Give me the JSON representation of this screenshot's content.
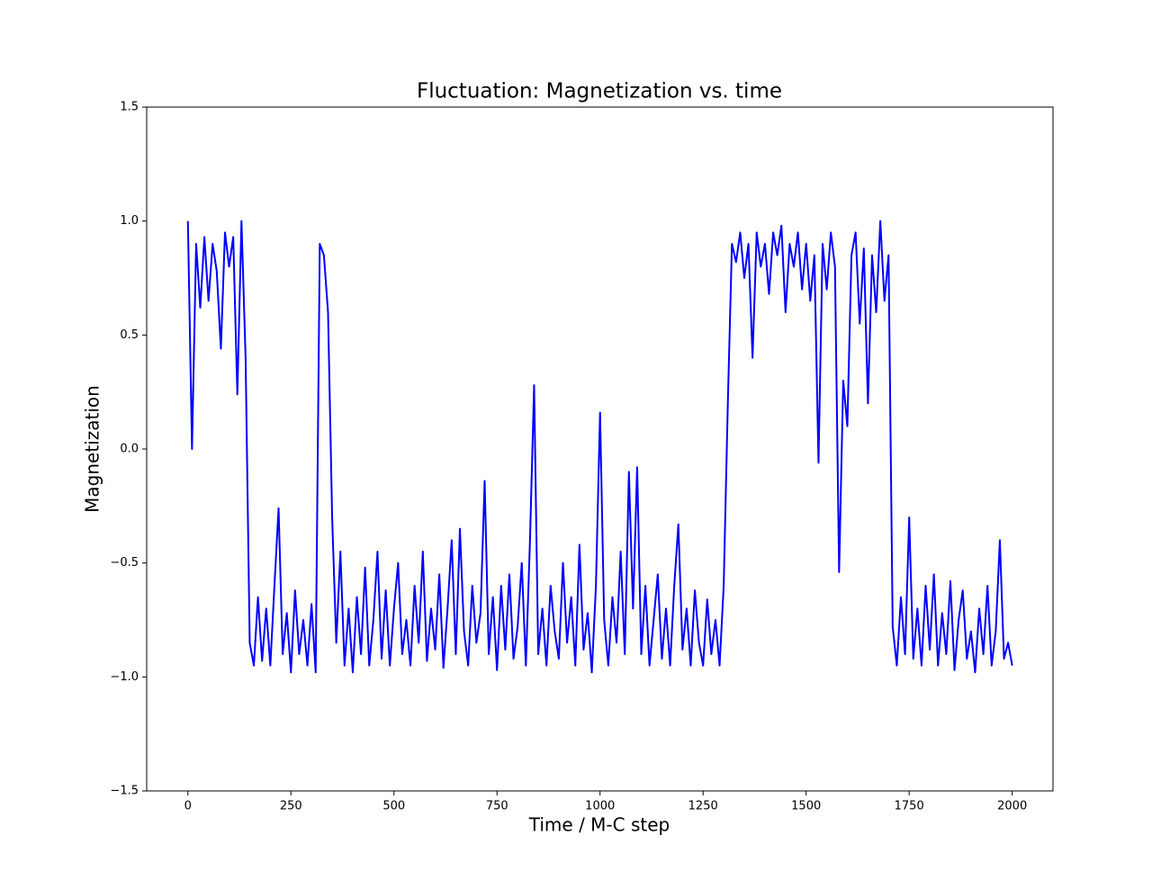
{
  "chart_data": {
    "type": "line",
    "title": "Fluctuation: Magnetization vs. time",
    "x_label": "Time / M-C step",
    "y_label": "Magnetization",
    "xlim": [
      -99.95,
      2098.95
    ],
    "ylim": [
      -1.5,
      1.5
    ],
    "xticks": [
      0,
      250,
      500,
      750,
      1000,
      1250,
      1500,
      1750,
      2000
    ],
    "yticks": [
      {
        "value": -1.5,
        "label": "−1.5"
      },
      {
        "value": -1.0,
        "label": "−1.0"
      },
      {
        "value": -0.5,
        "label": "−0.5"
      },
      {
        "value": 0,
        "label": "0.0"
      },
      0.5,
      {
        "value": 1.0,
        "label": "1.0"
      },
      1.5
    ],
    "grid": false,
    "series": [
      {
        "color": "#0000ff",
        "x": [
          0,
          10,
          20,
          30,
          40,
          50,
          60,
          70,
          80,
          90,
          100,
          110,
          120,
          130,
          140,
          150,
          160,
          170,
          180,
          190,
          200,
          210,
          220,
          230,
          240,
          250,
          260,
          270,
          280,
          290,
          300,
          310,
          320,
          330,
          340,
          350,
          360,
          370,
          380,
          390,
          400,
          410,
          420,
          430,
          440,
          450,
          460,
          470,
          480,
          490,
          500,
          510,
          520,
          530,
          540,
          550,
          560,
          570,
          580,
          590,
          600,
          610,
          620,
          630,
          640,
          650,
          660,
          670,
          680,
          690,
          700,
          710,
          720,
          730,
          740,
          750,
          760,
          770,
          780,
          790,
          800,
          810,
          820,
          830,
          840,
          850,
          860,
          870,
          880,
          890,
          900,
          910,
          920,
          930,
          940,
          950,
          960,
          970,
          980,
          990,
          1000,
          1010,
          1020,
          1030,
          1040,
          1050,
          1060,
          1070,
          1080,
          1090,
          1100,
          1110,
          1120,
          1130,
          1140,
          1150,
          1160,
          1170,
          1180,
          1190,
          1200,
          1210,
          1220,
          1230,
          1240,
          1250,
          1260,
          1270,
          1280,
          1290,
          1300,
          1310,
          1320,
          1330,
          1340,
          1350,
          1360,
          1370,
          1380,
          1390,
          1400,
          1410,
          1420,
          1430,
          1440,
          1450,
          1460,
          1470,
          1480,
          1490,
          1500,
          1510,
          1520,
          1530,
          1540,
          1550,
          1560,
          1570,
          1580,
          1590,
          1600,
          1610,
          1620,
          1630,
          1640,
          1650,
          1660,
          1670,
          1680,
          1690,
          1700,
          1710,
          1720,
          1730,
          1740,
          1750,
          1760,
          1770,
          1780,
          1790,
          1800,
          1810,
          1820,
          1830,
          1840,
          1850,
          1860,
          1870,
          1880,
          1890,
          1900,
          1910,
          1920,
          1930,
          1940,
          1950,
          1960,
          1970,
          1980,
          1990,
          2000
        ],
        "values": [
          1.0,
          0.0,
          0.9,
          0.62,
          0.93,
          0.65,
          0.9,
          0.78,
          0.44,
          0.95,
          0.8,
          0.93,
          0.24,
          1.0,
          0.4,
          -0.85,
          -0.95,
          -0.65,
          -0.93,
          -0.7,
          -0.95,
          -0.6,
          -0.26,
          -0.9,
          -0.72,
          -0.98,
          -0.62,
          -0.9,
          -0.75,
          -0.95,
          -0.68,
          -0.98,
          0.9,
          0.85,
          0.6,
          -0.3,
          -0.85,
          -0.45,
          -0.95,
          -0.7,
          -0.98,
          -0.65,
          -0.9,
          -0.52,
          -0.95,
          -0.75,
          -0.45,
          -0.92,
          -0.62,
          -0.95,
          -0.7,
          -0.5,
          -0.9,
          -0.75,
          -0.95,
          -0.6,
          -0.85,
          -0.45,
          -0.93,
          -0.7,
          -0.88,
          -0.55,
          -0.96,
          -0.7,
          -0.4,
          -0.9,
          -0.35,
          -0.8,
          -0.95,
          -0.6,
          -0.85,
          -0.72,
          -0.14,
          -0.9,
          -0.65,
          -0.97,
          -0.6,
          -0.88,
          -0.55,
          -0.92,
          -0.78,
          -0.5,
          -0.95,
          -0.4,
          0.28,
          -0.9,
          -0.7,
          -0.95,
          -0.6,
          -0.8,
          -0.92,
          -0.5,
          -0.85,
          -0.65,
          -0.95,
          -0.42,
          -0.88,
          -0.72,
          -0.98,
          -0.6,
          0.16,
          -0.75,
          -0.95,
          -0.65,
          -0.85,
          -0.45,
          -0.9,
          -0.1,
          -0.7,
          -0.08,
          -0.9,
          -0.6,
          -0.95,
          -0.75,
          -0.55,
          -0.92,
          -0.7,
          -0.95,
          -0.6,
          -0.33,
          -0.88,
          -0.7,
          -0.95,
          -0.62,
          -0.85,
          -0.95,
          -0.66,
          -0.9,
          -0.75,
          -0.95,
          -0.6,
          0.2,
          0.9,
          0.82,
          0.95,
          0.75,
          0.9,
          0.4,
          0.95,
          0.8,
          0.9,
          0.68,
          0.95,
          0.85,
          0.98,
          0.6,
          0.9,
          0.8,
          0.95,
          0.7,
          0.9,
          0.65,
          0.85,
          -0.06,
          0.9,
          0.7,
          0.95,
          0.8,
          -0.54,
          0.3,
          0.1,
          0.85,
          0.95,
          0.55,
          0.88,
          0.2,
          0.85,
          0.6,
          1.0,
          0.65,
          0.85,
          -0.78,
          -0.95,
          -0.65,
          -0.9,
          -0.3,
          -0.92,
          -0.7,
          -0.95,
          -0.6,
          -0.88,
          -0.55,
          -0.95,
          -0.72,
          -0.9,
          -0.58,
          -0.97,
          -0.75,
          -0.62,
          -0.92,
          -0.8,
          -0.98,
          -0.7,
          -0.9,
          -0.6,
          -0.95,
          -0.8,
          -0.4,
          -0.92,
          -0.85,
          -0.95
        ]
      }
    ]
  }
}
